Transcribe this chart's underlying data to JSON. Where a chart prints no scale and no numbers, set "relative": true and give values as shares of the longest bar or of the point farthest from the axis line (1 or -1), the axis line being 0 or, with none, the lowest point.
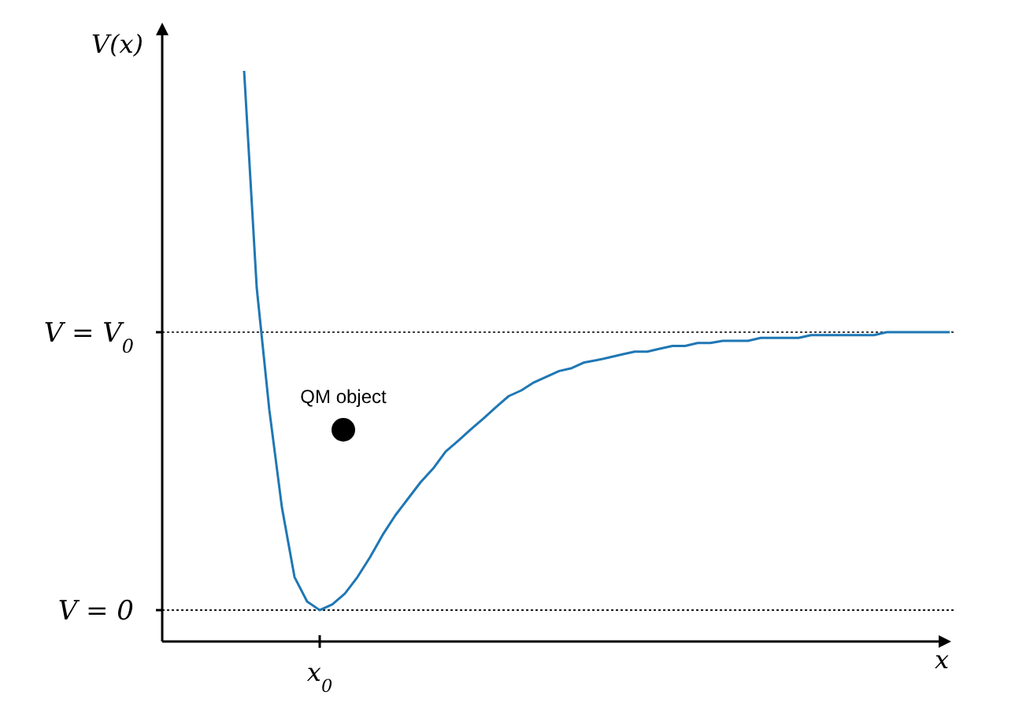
{
  "chart_data": {
    "type": "line",
    "relative": true,
    "xlabel": "x",
    "ylabel": "V(x)",
    "categories": [
      null,
      null,
      null,
      null,
      null,
      null,
      null,
      null,
      null,
      null,
      null,
      null,
      null,
      null,
      null,
      null,
      null,
      null,
      null,
      null,
      null,
      null,
      null,
      null,
      null,
      null,
      null,
      null,
      null,
      null,
      null,
      null,
      null,
      null,
      null,
      null,
      null,
      null,
      null,
      null,
      null,
      null,
      null,
      null,
      null,
      null,
      null,
      null,
      null,
      null,
      null,
      null,
      null,
      null,
      null,
      null,
      null
    ],
    "annotations": [
      "x$_{0}$",
      "QM object"
    ],
    "ref_lines": [
      {
        "axis": "y",
        "value": 0.055,
        "label": "V = 0",
        "line_style": "dotted",
        "color": "#000000"
      },
      {
        "axis": "y",
        "value": 0.542,
        "label": "V = V$_{0}$",
        "line_style": "dotted",
        "color": "#000000"
      }
    ],
    "series": [
      {
        "color": "#1f77b4",
        "values": [
          1.0,
          0.62,
          0.406,
          0.235,
          0.113,
          0.07,
          0.055,
          0.065,
          0.084,
          0.113,
          0.148,
          0.187,
          0.221,
          0.25,
          0.279,
          0.303,
          0.333,
          0.352,
          0.372,
          0.391,
          0.411,
          0.43,
          0.44,
          0.454,
          0.464,
          0.474,
          0.479,
          0.489,
          0.493,
          0.498,
          0.503,
          0.508,
          0.508,
          0.513,
          0.518,
          0.518,
          0.523,
          0.523,
          0.527,
          0.527,
          0.527,
          0.532,
          0.532,
          0.532,
          0.532,
          0.537,
          0.537,
          0.537,
          0.537,
          0.537,
          0.537,
          0.542,
          0.542,
          0.542,
          0.542,
          0.542,
          0.542
        ]
      }
    ]
  }
}
